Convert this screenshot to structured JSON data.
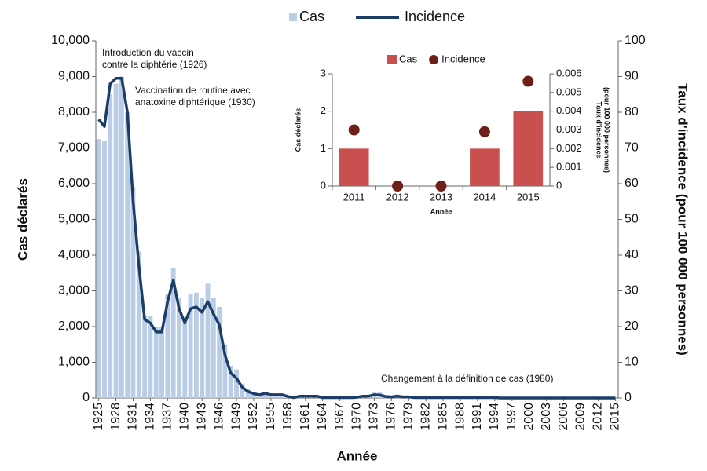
{
  "chart_data": [
    {
      "type": "bar",
      "xlabel": "Année",
      "ylabel": "Cas déclarés",
      "y2label": "Taux d'incidence (pour 100 000 personnes)",
      "x": [
        1925,
        1926,
        1927,
        1928,
        1929,
        1930,
        1931,
        1932,
        1933,
        1934,
        1935,
        1936,
        1937,
        1938,
        1939,
        1940,
        1941,
        1942,
        1943,
        1944,
        1945,
        1946,
        1947,
        1948,
        1949,
        1950,
        1951,
        1952,
        1953,
        1954,
        1955,
        1956,
        1957,
        1958,
        1959,
        1960,
        1961,
        1962,
        1963,
        1964,
        1965,
        1966,
        1967,
        1968,
        1969,
        1970,
        1971,
        1972,
        1973,
        1974,
        1975,
        1976,
        1977,
        1978,
        1979,
        1980,
        1981,
        1982,
        1983,
        1984,
        1985,
        1986,
        1987,
        1988,
        1989,
        1990,
        1991,
        1992,
        1993,
        1994,
        1995,
        1996,
        1997,
        1998,
        1999,
        2000,
        2001,
        2002,
        2003,
        2004,
        2005,
        2006,
        2007,
        2008,
        2009,
        2010,
        2011,
        2012,
        2013,
        2014,
        2015
      ],
      "series": [
        {
          "name": "Cas",
          "color": "#b9cde6",
          "values": [
            7250,
            7200,
            8500,
            8800,
            9000,
            8000,
            5900,
            4100,
            2300,
            2300,
            2000,
            2000,
            2900,
            3650,
            2800,
            2100,
            2900,
            2950,
            2800,
            3200,
            2800,
            2550,
            1500,
            900,
            800,
            400,
            250,
            150,
            100,
            150,
            100,
            100,
            100,
            50,
            20,
            60,
            60,
            60,
            50,
            10,
            10,
            10,
            10,
            10,
            10,
            20,
            60,
            60,
            150,
            150,
            40,
            30,
            100,
            30,
            30,
            5,
            5,
            5,
            5,
            5,
            3,
            3,
            3,
            3,
            3,
            3,
            3,
            3,
            3,
            3,
            3,
            3,
            3,
            3,
            3,
            3,
            3,
            3,
            3,
            3,
            3,
            3,
            3,
            3,
            3,
            3,
            1,
            0,
            0,
            1,
            2
          ]
        },
        {
          "name": "Incidence",
          "type": "line",
          "axis": "y2",
          "color": "#1c3d68",
          "values": [
            78,
            76,
            88,
            89.5,
            89.5,
            80,
            55,
            37,
            22,
            21,
            18.5,
            18.5,
            27,
            33,
            25,
            21,
            25,
            25.5,
            24,
            27,
            23.5,
            20.5,
            12,
            7,
            5.5,
            3,
            1.8,
            1.2,
            0.9,
            1.3,
            0.9,
            0.9,
            0.9,
            0.4,
            0.1,
            0.5,
            0.5,
            0.5,
            0.5,
            0.1,
            0.1,
            0.1,
            0.1,
            0.1,
            0.1,
            0.2,
            0.5,
            0.5,
            0.9,
            0.8,
            0.4,
            0.3,
            0.5,
            0.3,
            0.3,
            0.1,
            0.1,
            0.1,
            0.1,
            0.1,
            0.1,
            0.1,
            0.1,
            0.1,
            0.1,
            0.1,
            0.1,
            0.1,
            0.1,
            0.1,
            0.01,
            0.01,
            0.01,
            0.01,
            0.01,
            0.01,
            0.01,
            0.01,
            0.01,
            0.01,
            0.01,
            0.01,
            0.01,
            0.01,
            0.01,
            0.01,
            0.003,
            0,
            0,
            0.003,
            0.006
          ]
        }
      ],
      "xlim": [
        1924.5,
        2015.5
      ],
      "xticks": [
        1925,
        1928,
        1931,
        1934,
        1937,
        1940,
        1943,
        1946,
        1949,
        1952,
        1955,
        1958,
        1961,
        1964,
        1967,
        1970,
        1973,
        1976,
        1979,
        1982,
        1985,
        1988,
        1991,
        1994,
        1997,
        2000,
        2003,
        2006,
        2009,
        2012,
        2015
      ],
      "ylim": [
        0,
        10000
      ],
      "yticks": [
        0,
        {
          "value": 1000,
          "label": "1,000"
        },
        {
          "value": 2000,
          "label": "2,000"
        },
        {
          "value": 3000,
          "label": "3,000"
        },
        {
          "value": 4000,
          "label": "4,000"
        },
        {
          "value": 5000,
          "label": "5,000"
        },
        {
          "value": 6000,
          "label": "6,000"
        },
        {
          "value": 7000,
          "label": "7,000"
        },
        {
          "value": 8000,
          "label": "8,000"
        },
        {
          "value": 9000,
          "label": "9,000"
        },
        {
          "value": 10000,
          "label": "10,000"
        }
      ],
      "y2lim": [
        0,
        100
      ],
      "y2ticks": [
        0,
        10,
        20,
        30,
        40,
        50,
        60,
        70,
        80,
        90,
        100
      ],
      "annotations": [
        [
          "Introduction du vaccin",
          "contre la diphtérie (1926)"
        ],
        [
          "Vaccination de routine avec",
          "anatoxine diphtérique (1930)"
        ],
        [
          "Changement à la définition de cas (1980)"
        ]
      ],
      "legend": "top"
    },
    {
      "type": "bar",
      "xlabel": "Année",
      "ylabel": "Cas déclarés",
      "y2label": [
        "Taux d'incidence",
        "(pour 100 000 personnes)"
      ],
      "categories": [
        "2011",
        "2012",
        "2013",
        "2014",
        "2015"
      ],
      "series": [
        {
          "name": "Cas",
          "color": "#c9504f",
          "values": [
            1,
            0,
            0,
            1,
            2
          ]
        },
        {
          "name": "Incidence",
          "type": "scatter",
          "axis": "y2",
          "color": "#6e1f1a",
          "values": [
            0.003,
            0,
            0,
            0.0029,
            0.0056
          ]
        }
      ],
      "ylim": [
        0,
        3
      ],
      "yticks": [
        0,
        1,
        2,
        3
      ],
      "y2lim": [
        0,
        0.006
      ],
      "y2ticks": [
        0,
        0.001,
        0.002,
        0.003,
        0.004,
        0.005,
        0.006
      ],
      "legend": "top"
    }
  ]
}
